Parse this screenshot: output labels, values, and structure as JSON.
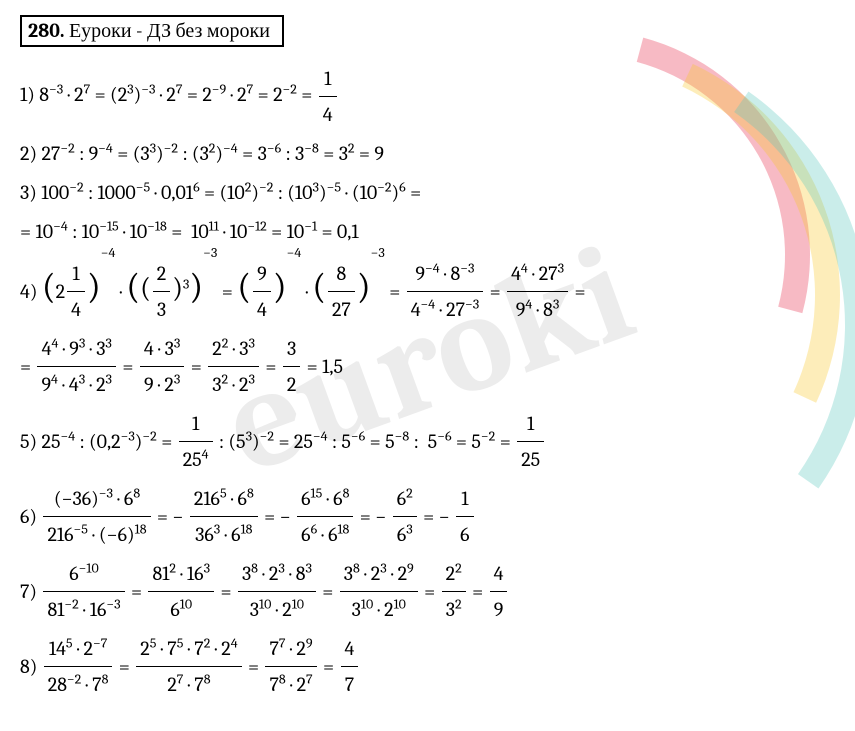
{
  "header": {
    "number": "280.",
    "text": "Еуроки - ДЗ без мороки"
  },
  "styling": {
    "background_color": "#ffffff",
    "text_color": "#000000",
    "border_color": "#000000",
    "watermark_text": "euroki",
    "watermark_color": "rgba(180,180,180,0.25)",
    "arc_colors": [
      "rgba(230,40,70,0.32)",
      "rgba(250,200,40,0.32)",
      "rgba(90,200,190,0.32)"
    ],
    "font_family": "Cambria",
    "font_size_pt": 15
  },
  "problems": [
    {
      "n": "1)",
      "expr": "8<sup>−3</sup> · 2<sup>7</sup> = (2<sup>3</sup>)<sup>−3</sup> · 2<sup>7</sup> = 2<sup>−9</sup> · 2<sup>7</sup> = 2<sup>−2</sup> = ",
      "frac": {
        "num": "1",
        "den": "4"
      }
    },
    {
      "n": "2)",
      "expr": "27<sup>−2</sup> : 9<sup>−4</sup> = (3<sup>3</sup>)<sup>−2</sup> : (3<sup>2</sup>)<sup>−4</sup> = 3<sup>−6</sup> : 3<sup>−8</sup> = 3<sup>2</sup> = 9"
    },
    {
      "n": "3)",
      "l1": "100<sup>−2</sup> : 1000<sup>−5</sup> · 0,01<sup>6</sup> = (10<sup>2</sup>)<sup>−2</sup> : (10<sup>3</sup>)<sup>−5</sup> · (10<sup>−2</sup>)<sup>6</sup> =",
      "l2": "= 10<sup>−4</sup> : 10<sup>−15</sup> · 10<sup>−18</sup> =&nbsp;&nbsp;10<sup>11</sup> · 10<sup>−12</sup> = 10<sup>−1</sup> = 0,1"
    },
    {
      "n": "4)",
      "parts": [
        {
          "t": "bigparen",
          "val": "2",
          "fnum": "1",
          "fden": "4",
          "exp": "−4"
        },
        {
          "t": "txt",
          "val": " · "
        },
        {
          "t": "dblparen",
          "fnum": "2",
          "fden": "3",
          "innerexp": "3",
          "exp": "−3"
        },
        {
          "t": "txt",
          "val": " = "
        },
        {
          "t": "bigparen2",
          "fnum": "9",
          "fden": "4",
          "exp": "−4"
        },
        {
          "t": "txt",
          "val": " · "
        },
        {
          "t": "bigparen2",
          "fnum": "8",
          "fden": "27",
          "exp": "−3"
        },
        {
          "t": "txt",
          "val": " = "
        },
        {
          "t": "frac",
          "num": "9<sup>−4</sup> · 8<sup>−3</sup>",
          "den": "4<sup>−4</sup> · 27<sup>−3</sup>"
        },
        {
          "t": "txt",
          "val": " = "
        },
        {
          "t": "frac",
          "num": "4<sup>4</sup> · 27<sup>3</sup>",
          "den": "9<sup>4</sup> · 8<sup>3</sup>"
        },
        {
          "t": "txt",
          "val": " ="
        }
      ],
      "l2parts": [
        {
          "t": "txt",
          "val": "= "
        },
        {
          "t": "frac",
          "num": "4<sup>4</sup> · 9<sup>3</sup> · 3<sup>3</sup>",
          "den": "9<sup>4</sup> · 4<sup>3</sup> · 2<sup>3</sup>"
        },
        {
          "t": "txt",
          "val": " = "
        },
        {
          "t": "frac",
          "num": "4 · 3<sup>3</sup>",
          "den": "9 · 2<sup>3</sup>"
        },
        {
          "t": "txt",
          "val": " = "
        },
        {
          "t": "frac",
          "num": "2<sup>2</sup> · 3<sup>3</sup>",
          "den": "3<sup>2</sup> · 2<sup>3</sup>"
        },
        {
          "t": "txt",
          "val": " = "
        },
        {
          "t": "frac",
          "num": "3",
          "den": "2"
        },
        {
          "t": "txt",
          "val": " = 1,5"
        }
      ]
    },
    {
      "n": "5)",
      "parts": [
        {
          "t": "txt",
          "val": "25<sup>−4</sup> : (0,2<sup>−3</sup>)<sup>−2</sup> = "
        },
        {
          "t": "frac",
          "num": "1",
          "den": "25<sup>4</sup>"
        },
        {
          "t": "txt",
          "val": " : (5<sup>3</sup>)<sup>−2</sup> = 25<sup>−4</sup> : 5<sup>−6</sup> = 5<sup>−8</sup> :&nbsp; 5<sup>−6</sup> = 5<sup>−2</sup> = "
        },
        {
          "t": "frac",
          "num": "1",
          "den": "25"
        }
      ]
    },
    {
      "n": "6)",
      "parts": [
        {
          "t": "frac",
          "num": "(−36)<sup>−3</sup> · 6<sup>8</sup>",
          "den": "216<sup>−5</sup> · (−6)<sup>18</sup>"
        },
        {
          "t": "txt",
          "val": " = − "
        },
        {
          "t": "frac",
          "num": "216<sup>5</sup> · 6<sup>8</sup>",
          "den": "36<sup>3</sup> · 6<sup>18</sup>"
        },
        {
          "t": "txt",
          "val": " = − "
        },
        {
          "t": "frac",
          "num": "6<sup>15</sup> · 6<sup>8</sup>",
          "den": "6<sup>6</sup> · 6<sup>18</sup>"
        },
        {
          "t": "txt",
          "val": " = − "
        },
        {
          "t": "frac",
          "num": "6<sup>2</sup>",
          "den": "6<sup>3</sup>"
        },
        {
          "t": "txt",
          "val": " = − "
        },
        {
          "t": "frac",
          "num": "1",
          "den": "6"
        }
      ]
    },
    {
      "n": "7)",
      "parts": [
        {
          "t": "frac",
          "num": "6<sup>−10</sup>",
          "den": "81<sup>−2</sup> · 16<sup>−3</sup>"
        },
        {
          "t": "txt",
          "val": " = "
        },
        {
          "t": "frac",
          "num": "81<sup>2</sup> · 16<sup>3</sup>",
          "den": "6<sup>10</sup>"
        },
        {
          "t": "txt",
          "val": " = "
        },
        {
          "t": "frac",
          "num": "3<sup>8</sup> · 2<sup>3</sup> · 8<sup>3</sup>",
          "den": "3<sup>10</sup> · 2<sup>10</sup>"
        },
        {
          "t": "txt",
          "val": " = "
        },
        {
          "t": "frac",
          "num": "3<sup>8</sup> · 2<sup>3</sup> · 2<sup>9</sup>",
          "den": "3<sup>10</sup> · 2<sup>10</sup>"
        },
        {
          "t": "txt",
          "val": " = "
        },
        {
          "t": "frac",
          "num": "2<sup>2</sup>",
          "den": "3<sup>2</sup>"
        },
        {
          "t": "txt",
          "val": " = "
        },
        {
          "t": "frac",
          "num": "4",
          "den": "9"
        }
      ]
    },
    {
      "n": "8)",
      "parts": [
        {
          "t": "frac",
          "num": "14<sup>5</sup> · 2<sup>−7</sup>",
          "den": "28<sup>−2</sup> · 7<sup>8</sup>"
        },
        {
          "t": "txt",
          "val": " = "
        },
        {
          "t": "frac",
          "num": "2<sup>5</sup> · 7<sup>5</sup> · 7<sup>2</sup> · 2<sup>4</sup>",
          "den": "2<sup>7</sup> · 7<sup>8</sup>"
        },
        {
          "t": "txt",
          "val": " = "
        },
        {
          "t": "frac",
          "num": "7<sup>7</sup> · 2<sup>9</sup>",
          "den": "7<sup>8</sup> · 2<sup>7</sup>"
        },
        {
          "t": "txt",
          "val": " = "
        },
        {
          "t": "frac",
          "num": "4",
          "den": "7"
        }
      ]
    }
  ]
}
